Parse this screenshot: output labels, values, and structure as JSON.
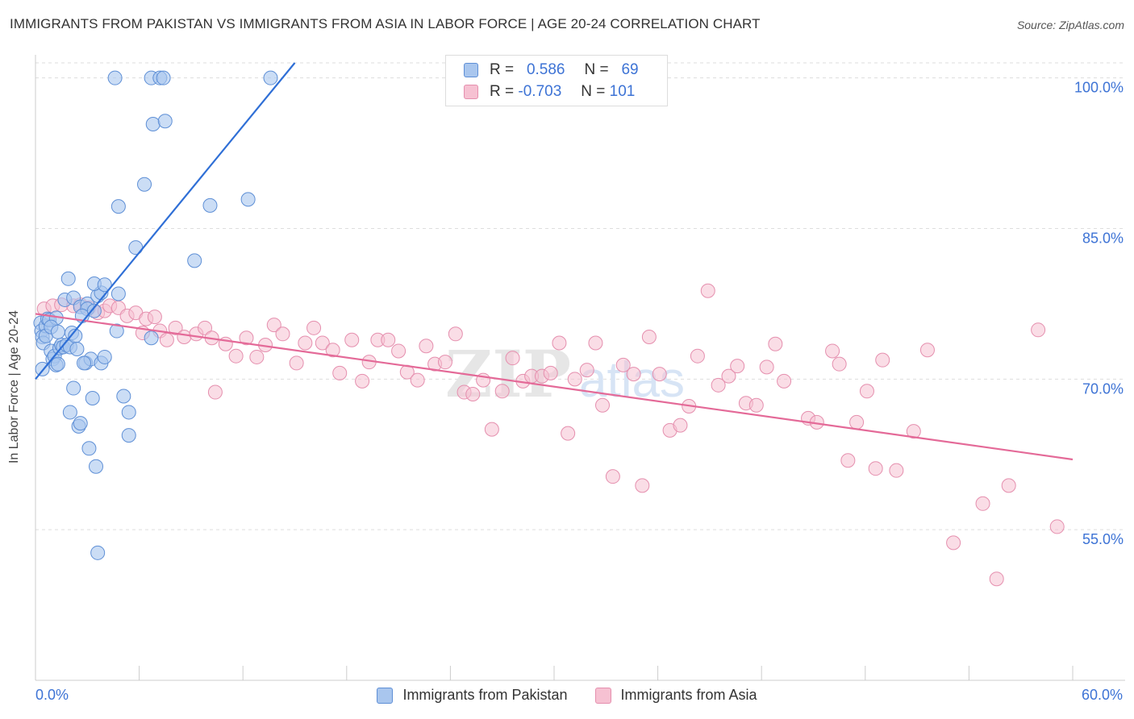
{
  "title": "IMMIGRANTS FROM PAKISTAN VS IMMIGRANTS FROM ASIA IN LABOR FORCE | AGE 20-24 CORRELATION CHART",
  "source": "Source: ZipAtlas.com",
  "watermark": "ZIPatlas",
  "colors": {
    "pakistan_fill": "#a9c6ee",
    "pakistan_stroke": "#5e8fd6",
    "pakistan_line": "#2f6fd6",
    "asia_fill": "#f6c1d2",
    "asia_stroke": "#e58fae",
    "asia_line": "#e46a98",
    "axis_text": "#3d73d5",
    "grid": "#dddddd"
  },
  "legend": {
    "rows": [
      {
        "r_label": "R =",
        "r_value": "0.586",
        "n_label": "N =",
        "n_value": "69"
      },
      {
        "r_label": "R =",
        "r_value": "-0.703",
        "n_label": "N =",
        "n_value": "101"
      }
    ]
  },
  "chart_data": {
    "type": "scatter",
    "title": "IMMIGRANTS FROM PAKISTAN VS IMMIGRANTS FROM ASIA IN LABOR FORCE | AGE 20-24 CORRELATION CHART",
    "xlabel": "",
    "ylabel": "In Labor Force | Age 20-24",
    "xlim": [
      0,
      60
    ],
    "ylim": [
      40,
      101.5
    ],
    "x_tick_labels": [
      "0.0%",
      "60.0%"
    ],
    "y_tick_values": [
      55,
      70,
      85,
      100
    ],
    "y_tick_labels": [
      "55.0%",
      "70.0%",
      "85.0%",
      "100.0%"
    ],
    "grid": true,
    "legend_position": "top-center",
    "series": [
      {
        "name": "Immigrants from Pakistan",
        "r": 0.586,
        "n": 69,
        "trend": {
          "x": [
            0,
            15
          ],
          "y": [
            70.0,
            101.5
          ]
        },
        "points": [
          [
            0.3,
            75.6
          ],
          [
            0.35,
            74.8
          ],
          [
            0.4,
            74.2
          ],
          [
            0.45,
            73.6
          ],
          [
            0.4,
            71.0
          ],
          [
            0.6,
            75.3
          ],
          [
            0.7,
            76.0
          ],
          [
            0.8,
            75.9
          ],
          [
            0.6,
            74.3
          ],
          [
            0.9,
            72.8
          ],
          [
            1.0,
            72.0
          ],
          [
            1.1,
            72.3
          ],
          [
            1.2,
            71.4
          ],
          [
            1.3,
            71.5
          ],
          [
            1.4,
            73.1
          ],
          [
            1.5,
            73.4
          ],
          [
            1.6,
            73.2
          ],
          [
            1.8,
            73.4
          ],
          [
            2.0,
            73.2
          ],
          [
            1.7,
            77.9
          ],
          [
            2.2,
            78.1
          ],
          [
            2.6,
            77.2
          ],
          [
            3.0,
            77.5
          ],
          [
            3.6,
            78.3
          ],
          [
            3.8,
            78.6
          ],
          [
            1.9,
            80.0
          ],
          [
            3.4,
            79.5
          ],
          [
            4.0,
            79.4
          ],
          [
            4.8,
            78.5
          ],
          [
            2.1,
            74.6
          ],
          [
            2.3,
            74.3
          ],
          [
            2.9,
            71.6
          ],
          [
            3.2,
            72.0
          ],
          [
            2.8,
            71.6
          ],
          [
            3.8,
            71.6
          ],
          [
            4.0,
            72.2
          ],
          [
            4.7,
            74.8
          ],
          [
            6.7,
            74.1
          ],
          [
            2.2,
            69.1
          ],
          [
            2.0,
            66.7
          ],
          [
            2.5,
            65.3
          ],
          [
            2.6,
            65.6
          ],
          [
            3.3,
            68.1
          ],
          [
            5.1,
            68.3
          ],
          [
            5.4,
            66.7
          ],
          [
            5.4,
            64.4
          ],
          [
            3.1,
            63.1
          ],
          [
            3.5,
            61.3
          ],
          [
            3.6,
            52.7
          ],
          [
            4.6,
            100.0
          ],
          [
            6.7,
            100.0
          ],
          [
            7.2,
            100.0
          ],
          [
            7.4,
            100.0
          ],
          [
            13.6,
            100.0
          ],
          [
            6.8,
            95.4
          ],
          [
            7.5,
            95.7
          ],
          [
            6.3,
            89.4
          ],
          [
            4.8,
            87.2
          ],
          [
            10.1,
            87.3
          ],
          [
            12.3,
            87.9
          ],
          [
            5.8,
            83.1
          ],
          [
            9.2,
            81.8
          ],
          [
            3.0,
            77.0
          ],
          [
            2.7,
            76.3
          ],
          [
            1.2,
            76.1
          ],
          [
            0.9,
            75.2
          ],
          [
            1.3,
            74.7
          ],
          [
            2.4,
            73.0
          ],
          [
            3.4,
            76.8
          ]
        ]
      },
      {
        "name": "Immigrants from Asia",
        "r": -0.703,
        "n": 101,
        "trend": {
          "x": [
            0,
            60
          ],
          "y": [
            76.5,
            62.0
          ]
        },
        "points": [
          [
            0.5,
            77.0
          ],
          [
            1.0,
            77.3
          ],
          [
            1.5,
            77.4
          ],
          [
            2.2,
            77.3
          ],
          [
            2.6,
            77.4
          ],
          [
            3.1,
            77.1
          ],
          [
            3.6,
            76.6
          ],
          [
            4.0,
            76.8
          ],
          [
            4.3,
            77.3
          ],
          [
            4.8,
            77.1
          ],
          [
            5.3,
            76.3
          ],
          [
            5.8,
            76.6
          ],
          [
            6.4,
            76.0
          ],
          [
            6.9,
            76.2
          ],
          [
            7.2,
            74.8
          ],
          [
            7.6,
            73.9
          ],
          [
            8.1,
            75.1
          ],
          [
            8.6,
            74.2
          ],
          [
            9.3,
            74.5
          ],
          [
            9.8,
            75.1
          ],
          [
            10.2,
            74.1
          ],
          [
            11.0,
            73.5
          ],
          [
            11.6,
            72.3
          ],
          [
            12.2,
            74.1
          ],
          [
            12.8,
            72.2
          ],
          [
            13.3,
            73.4
          ],
          [
            13.8,
            75.4
          ],
          [
            14.3,
            74.5
          ],
          [
            15.1,
            71.6
          ],
          [
            15.6,
            73.6
          ],
          [
            16.1,
            75.1
          ],
          [
            16.6,
            73.6
          ],
          [
            17.2,
            72.9
          ],
          [
            17.6,
            70.6
          ],
          [
            18.3,
            73.9
          ],
          [
            18.9,
            69.8
          ],
          [
            19.3,
            71.7
          ],
          [
            19.8,
            73.9
          ],
          [
            20.4,
            73.9
          ],
          [
            21.0,
            72.8
          ],
          [
            21.5,
            70.7
          ],
          [
            22.1,
            69.9
          ],
          [
            22.6,
            73.3
          ],
          [
            23.1,
            71.5
          ],
          [
            23.7,
            71.7
          ],
          [
            24.3,
            74.5
          ],
          [
            24.8,
            68.7
          ],
          [
            25.3,
            68.5
          ],
          [
            25.9,
            69.9
          ],
          [
            26.4,
            65.0
          ],
          [
            27.0,
            68.8
          ],
          [
            27.6,
            72.1
          ],
          [
            28.2,
            69.8
          ],
          [
            28.7,
            70.3
          ],
          [
            29.3,
            70.3
          ],
          [
            29.8,
            70.6
          ],
          [
            30.3,
            73.6
          ],
          [
            30.8,
            64.6
          ],
          [
            31.2,
            70.0
          ],
          [
            31.9,
            70.9
          ],
          [
            32.4,
            73.6
          ],
          [
            32.8,
            67.4
          ],
          [
            33.4,
            60.3
          ],
          [
            34.0,
            71.4
          ],
          [
            34.6,
            70.5
          ],
          [
            35.1,
            59.4
          ],
          [
            35.5,
            74.2
          ],
          [
            36.1,
            70.5
          ],
          [
            36.7,
            64.9
          ],
          [
            37.3,
            65.4
          ],
          [
            37.8,
            67.3
          ],
          [
            38.3,
            72.3
          ],
          [
            38.9,
            78.8
          ],
          [
            39.5,
            69.4
          ],
          [
            40.1,
            70.3
          ],
          [
            40.6,
            71.3
          ],
          [
            41.1,
            67.6
          ],
          [
            41.7,
            67.4
          ],
          [
            42.3,
            71.2
          ],
          [
            42.8,
            73.5
          ],
          [
            43.3,
            69.8
          ],
          [
            44.7,
            66.1
          ],
          [
            45.2,
            65.7
          ],
          [
            46.1,
            72.8
          ],
          [
            46.5,
            71.5
          ],
          [
            47.0,
            61.9
          ],
          [
            47.5,
            65.7
          ],
          [
            48.1,
            68.8
          ],
          [
            48.6,
            61.1
          ],
          [
            49.0,
            71.9
          ],
          [
            49.8,
            60.9
          ],
          [
            50.8,
            64.8
          ],
          [
            51.6,
            72.9
          ],
          [
            53.1,
            53.7
          ],
          [
            54.8,
            57.6
          ],
          [
            55.6,
            50.1
          ],
          [
            56.3,
            59.4
          ],
          [
            58.0,
            74.9
          ],
          [
            59.1,
            55.3
          ],
          [
            10.4,
            68.7
          ],
          [
            6.2,
            74.6
          ]
        ]
      }
    ]
  },
  "bottom_legend": [
    {
      "label": "Immigrants from Pakistan"
    },
    {
      "label": "Immigrants from Asia"
    }
  ]
}
